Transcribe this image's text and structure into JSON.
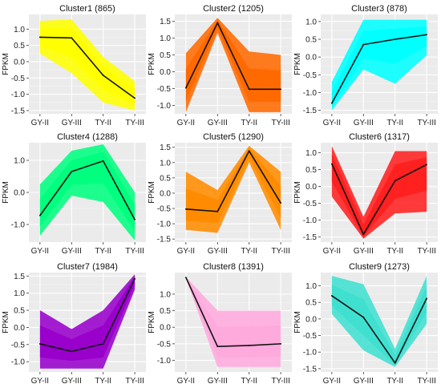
{
  "chart_data": [
    {
      "type": "line",
      "title": "Cluster1 (865)",
      "ylabel": "FPKM",
      "categories": [
        "GY-II",
        "GY-III",
        "TY-II",
        "TY-III"
      ],
      "ylim": [
        -1.6,
        1.45
      ],
      "yticks": [
        1.0,
        0.5,
        0.0,
        -0.5,
        -1.0,
        -1.5
      ],
      "ytick_labels": [
        "1.0",
        "0.5",
        "0.0",
        "-0.5",
        "-1.0",
        "-1.5"
      ],
      "band_color": "#ffff00",
      "band_upper": [
        1.25,
        1.3,
        0.15,
        -0.6
      ],
      "band_lower": [
        0.25,
        -0.35,
        -1.25,
        -1.5
      ],
      "series": [
        {
          "values": [
            0.75,
            0.73,
            -0.42,
            -1.12
          ]
        }
      ]
    },
    {
      "type": "line",
      "title": "Cluster2 (1205)",
      "ylabel": "FPKM",
      "categories": [
        "GY-II",
        "GY-III",
        "TY-II",
        "TY-III"
      ],
      "ylim": [
        -1.25,
        1.7
      ],
      "yticks": [
        1.5,
        1.0,
        0.5,
        0.0,
        -0.5,
        -1.0
      ],
      "ytick_labels": [
        "1.5",
        "1.0",
        "0.5",
        "0.0",
        "-0.5",
        "-1.0"
      ],
      "band_color": "#ff6a00",
      "band_upper": [
        0.55,
        1.6,
        0.6,
        0.5
      ],
      "band_lower": [
        -1.2,
        1.15,
        -1.2,
        -1.2
      ],
      "series": [
        {
          "values": [
            -0.48,
            1.45,
            -0.52,
            -0.52
          ]
        }
      ]
    },
    {
      "type": "line",
      "title": "Cluster3 (878)",
      "ylabel": "FPKM",
      "categories": [
        "GY-II",
        "GY-III",
        "TY-II",
        "TY-III"
      ],
      "ylim": [
        -1.6,
        1.2
      ],
      "yticks": [
        1.0,
        0.5,
        0.0,
        -0.5,
        -1.0,
        -1.5
      ],
      "ytick_labels": [
        "1.0",
        "0.5",
        "0.0",
        "-0.5",
        "-1.0",
        "-1.5"
      ],
      "band_color": "#00ffff",
      "band_upper": [
        -0.7,
        1.05,
        1.05,
        1.05
      ],
      "band_lower": [
        -1.5,
        -0.35,
        -0.75,
        0.05
      ],
      "series": [
        {
          "values": [
            -1.3,
            0.35,
            0.5,
            0.63
          ]
        }
      ]
    },
    {
      "type": "line",
      "title": "Cluster4 (1288)",
      "ylabel": "FPKM",
      "categories": [
        "GY-II",
        "GY-III",
        "TY-II",
        "TY-III"
      ],
      "ylim": [
        -1.55,
        1.55
      ],
      "yticks": [
        1.0,
        0.0,
        -1.0
      ],
      "ytick_labels": [
        "1.0",
        "0.0",
        "-1.0"
      ],
      "band_color": "#00ff7f",
      "band_upper": [
        0.25,
        1.3,
        1.5,
        0.0
      ],
      "band_lower": [
        -1.35,
        -0.1,
        -0.3,
        -1.5
      ],
      "series": [
        {
          "values": [
            -0.72,
            0.65,
            0.98,
            -0.85
          ]
        }
      ]
    },
    {
      "type": "line",
      "title": "Cluster5 (1290)",
      "ylabel": "FPKM",
      "categories": [
        "GY-II",
        "GY-III",
        "TY-II",
        "TY-III"
      ],
      "ylim": [
        -1.6,
        1.65
      ],
      "yticks": [
        1.5,
        1.0,
        0.5,
        0.0,
        -0.5,
        -1.0,
        -1.5
      ],
      "ytick_labels": [
        "1.5",
        "1.0",
        "0.5",
        "0.0",
        "-0.5",
        "-1.0",
        "-1.5"
      ],
      "band_color": "#ff8c00",
      "band_upper": [
        0.7,
        0.1,
        1.55,
        0.7
      ],
      "band_lower": [
        -1.2,
        -1.3,
        1.0,
        -1.2
      ],
      "series": [
        {
          "values": [
            -0.52,
            -0.6,
            1.38,
            -0.32
          ]
        }
      ]
    },
    {
      "type": "line",
      "title": "Cluster6 (1317)",
      "ylabel": "FPKM",
      "categories": [
        "GY-II",
        "GY-III",
        "TY-II",
        "TY-III"
      ],
      "ylim": [
        -1.65,
        1.3
      ],
      "yticks": [
        1.0,
        0.5,
        0.0,
        -0.5,
        -1.0,
        -1.5
      ],
      "ytick_labels": [
        "1.0",
        "0.5",
        "0.0",
        "-0.5",
        "-1.0",
        "-1.5"
      ],
      "band_color": "#ff2020",
      "band_upper": [
        1.2,
        -0.9,
        1.05,
        1.05
      ],
      "band_lower": [
        -0.3,
        -1.55,
        -0.8,
        -0.75
      ],
      "series": [
        {
          "values": [
            0.67,
            -1.42,
            0.17,
            0.65
          ]
        }
      ]
    },
    {
      "type": "line",
      "title": "Cluster7 (1984)",
      "ylabel": "FPKM",
      "categories": [
        "GY-II",
        "GY-III",
        "TY-II",
        "TY-III"
      ],
      "ylim": [
        -1.3,
        1.6
      ],
      "yticks": [
        1.5,
        1.0,
        0.5,
        0.0,
        -0.5,
        -1.0
      ],
      "ytick_labels": [
        "1.5",
        "1.0",
        "0.5",
        "0.0",
        "-0.5",
        "-1.0"
      ],
      "band_color": "#9900cc",
      "band_upper": [
        0.5,
        -0.05,
        0.5,
        1.55
      ],
      "band_lower": [
        -1.2,
        -1.2,
        -1.2,
        1.1
      ],
      "series": [
        {
          "values": [
            -0.48,
            -0.7,
            -0.48,
            1.42
          ]
        }
      ]
    },
    {
      "type": "line",
      "title": "Cluster8 (1391)",
      "ylabel": "FPKM",
      "categories": [
        "GY-II",
        "GY-III",
        "TY-II",
        "TY-III"
      ],
      "ylim": [
        -1.35,
        1.65
      ],
      "yticks": [
        1.0,
        0.5,
        0.0,
        -0.5,
        -1.0
      ],
      "ytick_labels": [
        "1.0",
        "0.5",
        "0.0",
        "-0.5",
        "-1.0"
      ],
      "band_color": "#ffaadd",
      "band_upper": [
        1.52,
        0.5,
        0.5,
        0.5
      ],
      "band_lower": [
        1.48,
        -1.2,
        -1.2,
        -1.2
      ],
      "series": [
        {
          "values": [
            1.5,
            -0.58,
            -0.55,
            -0.5
          ]
        }
      ]
    },
    {
      "type": "line",
      "title": "Cluster9 (1273)",
      "ylabel": "FPKM",
      "categories": [
        "GY-II",
        "GY-III",
        "TY-II",
        "TY-III"
      ],
      "ylim": [
        -1.6,
        1.4
      ],
      "yticks": [
        1.0,
        0.5,
        0.0,
        -0.5,
        -1.0,
        -1.5
      ],
      "ytick_labels": [
        "1.0",
        "0.5",
        "0.0",
        "-0.5",
        "-1.0",
        "-1.5"
      ],
      "band_color": "#40e0d0",
      "band_upper": [
        1.3,
        1.05,
        -0.9,
        1.3
      ],
      "band_lower": [
        0.15,
        -0.95,
        -1.45,
        -0.15
      ],
      "series": [
        {
          "values": [
            0.7,
            0.05,
            -1.33,
            0.62
          ]
        }
      ]
    }
  ]
}
